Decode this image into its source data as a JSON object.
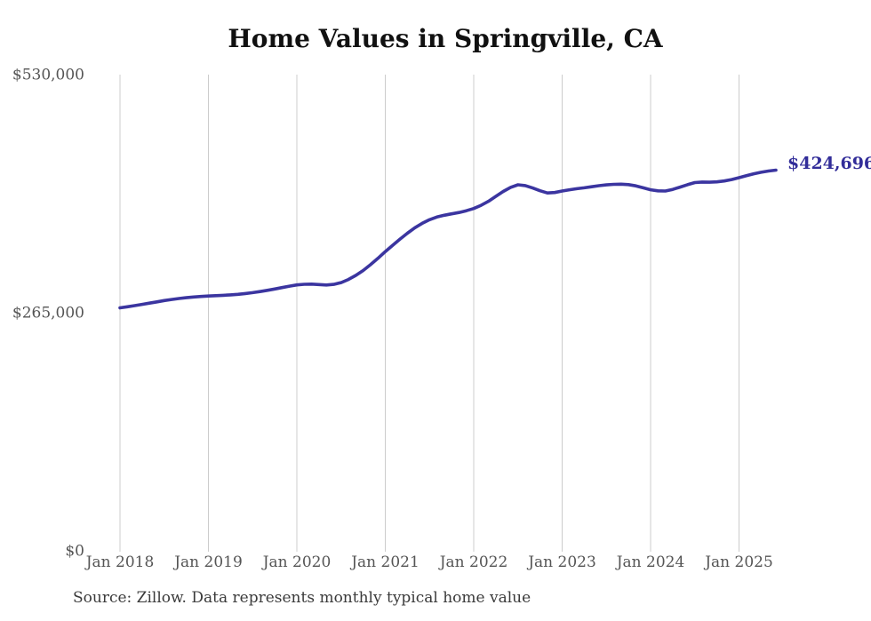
{
  "chart_data": {
    "type": "line",
    "title": "Home Values in Springville, CA",
    "source": "Source: Zillow. Data represents monthly typical home value",
    "end_value_label": "$424,696",
    "end_value": 424696,
    "frequency": "monthly",
    "grid": "vertical-only",
    "legend": "none",
    "xlabel": "",
    "ylabel": "",
    "ylim": [
      0,
      530000
    ],
    "y_axis": {
      "ticks": [
        {
          "value": 0,
          "label": "$0"
        },
        {
          "value": 265000,
          "label": "$265,000"
        },
        {
          "value": 530000,
          "label": "$530,000"
        }
      ]
    },
    "x_axis": {
      "tick_labels": [
        "Jan 2018",
        "Jan 2019",
        "Jan 2020",
        "Jan 2021",
        "Jan 2022",
        "Jan 2023",
        "Jan 2024",
        "Jan 2025"
      ]
    },
    "x": [
      "2018-01",
      "2018-02",
      "2018-03",
      "2018-04",
      "2018-05",
      "2018-06",
      "2018-07",
      "2018-08",
      "2018-09",
      "2018-10",
      "2018-11",
      "2018-12",
      "2019-01",
      "2019-02",
      "2019-03",
      "2019-04",
      "2019-05",
      "2019-06",
      "2019-07",
      "2019-08",
      "2019-09",
      "2019-10",
      "2019-11",
      "2019-12",
      "2020-01",
      "2020-02",
      "2020-03",
      "2020-04",
      "2020-05",
      "2020-06",
      "2020-07",
      "2020-08",
      "2020-09",
      "2020-10",
      "2020-11",
      "2020-12",
      "2021-01",
      "2021-02",
      "2021-03",
      "2021-04",
      "2021-05",
      "2021-06",
      "2021-07",
      "2021-08",
      "2021-09",
      "2021-10",
      "2021-11",
      "2021-12",
      "2022-01",
      "2022-02",
      "2022-03",
      "2022-04",
      "2022-05",
      "2022-06",
      "2022-07",
      "2022-08",
      "2022-09",
      "2022-10",
      "2022-11",
      "2022-12",
      "2023-01",
      "2023-02",
      "2023-03",
      "2023-04",
      "2023-05",
      "2023-06",
      "2023-07",
      "2023-08",
      "2023-09",
      "2023-10",
      "2023-11",
      "2023-12",
      "2024-01",
      "2024-02",
      "2024-03",
      "2024-04",
      "2024-05",
      "2024-06",
      "2024-07",
      "2024-08",
      "2024-09",
      "2024-10",
      "2024-11",
      "2024-12",
      "2025-01",
      "2025-02",
      "2025-03",
      "2025-04",
      "2025-05",
      "2025-06"
    ],
    "series": [
      {
        "name": "Typical home value",
        "values": [
          271400,
          272600,
          273900,
          275300,
          276700,
          278100,
          279500,
          280700,
          281800,
          282700,
          283500,
          284100,
          284600,
          285000,
          285400,
          285900,
          286500,
          287300,
          288300,
          289500,
          290900,
          292400,
          294000,
          295600,
          296900,
          297600,
          297800,
          297300,
          296800,
          297500,
          299500,
          303000,
          307500,
          313000,
          319500,
          326500,
          334000,
          341000,
          348000,
          354500,
          360500,
          365500,
          369500,
          372500,
          374500,
          376000,
          377500,
          379500,
          382000,
          385500,
          390000,
          395500,
          401000,
          405500,
          408400,
          407500,
          404800,
          401800,
          399300,
          399800,
          401500,
          402800,
          404000,
          405000,
          406200,
          407400,
          408300,
          408900,
          409100,
          408600,
          407200,
          405000,
          402800,
          401700,
          401500,
          403200,
          405800,
          408500,
          410800,
          411400,
          411200,
          411600,
          412600,
          414200,
          416300,
          418500,
          420600,
          422300,
          423700,
          424696
        ]
      }
    ],
    "colors": {
      "line": "#3b35a0",
      "end_label": "#322d99",
      "grid": "#cccccc",
      "axis_text": "#555555",
      "title_text": "#111111",
      "source_text": "#3a3a3a"
    }
  }
}
